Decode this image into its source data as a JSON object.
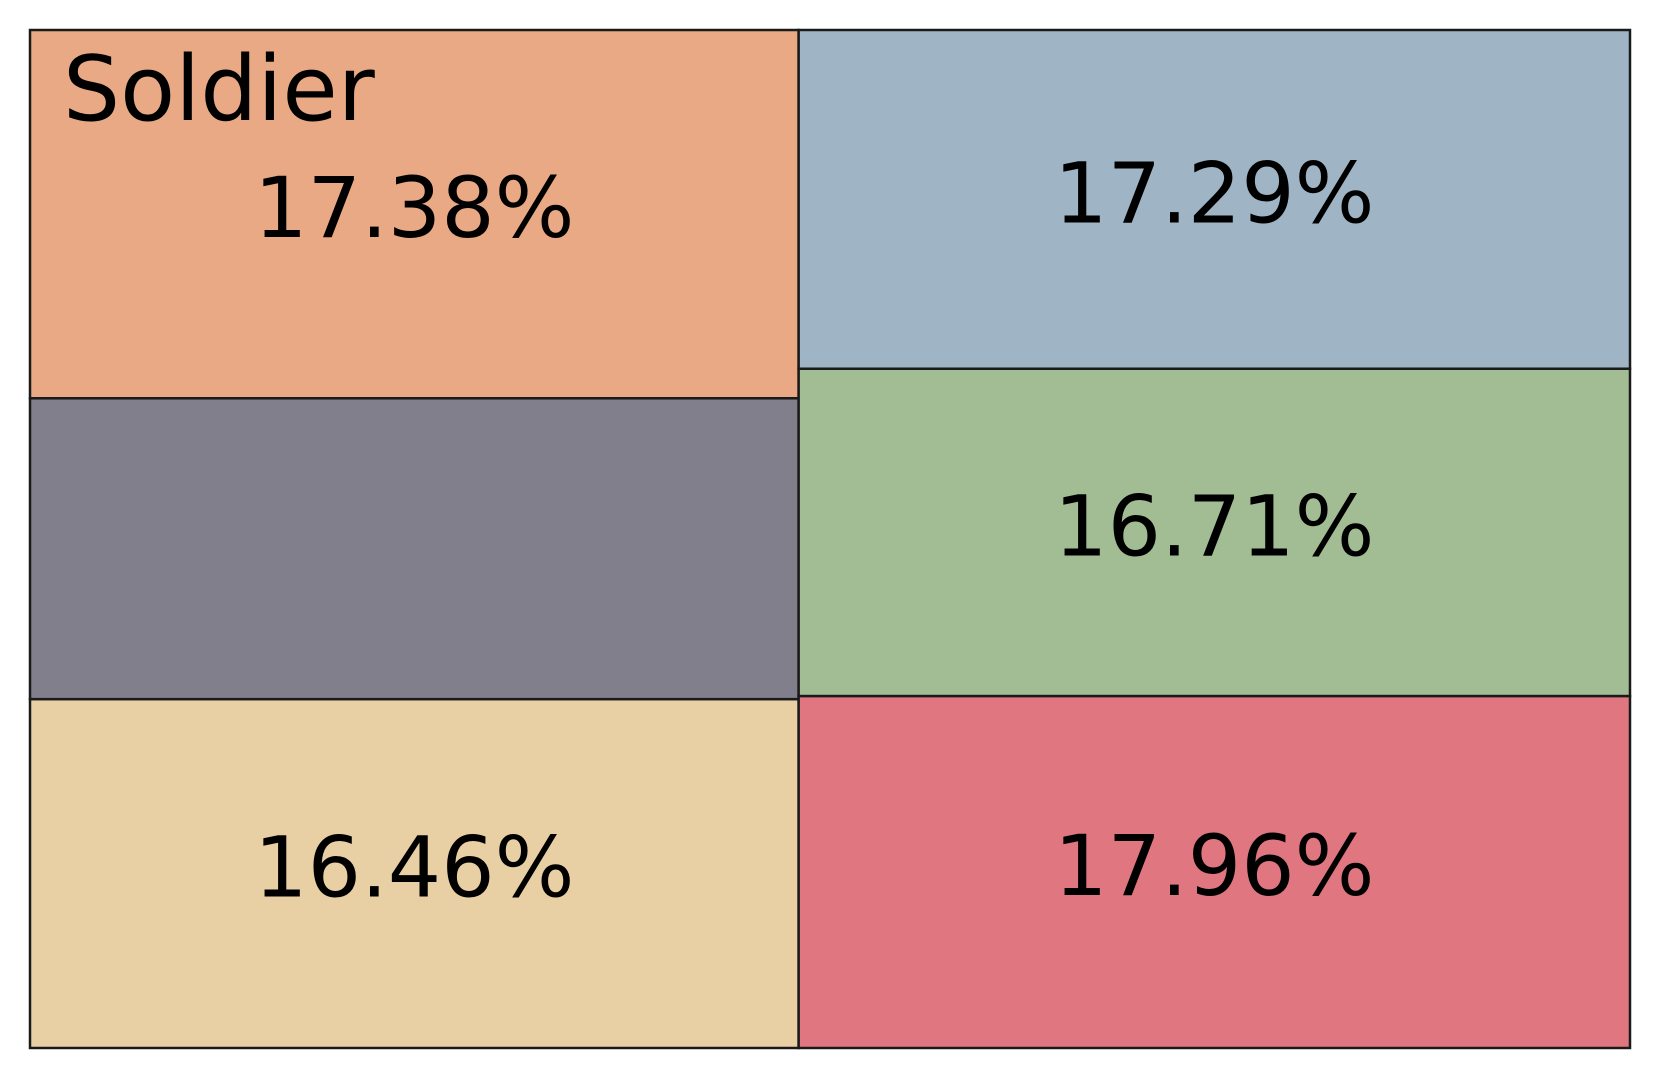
{
  "chart_data": {
    "type": "treemap",
    "categories": [
      "Soldier",
      null,
      null,
      null,
      null,
      null
    ],
    "values": [
      17.38,
      14.2,
      16.46,
      17.29,
      16.71,
      17.96
    ],
    "value_labels": [
      "17.38%",
      null,
      "16.46%",
      "17.29%",
      "16.71%",
      "17.96%"
    ],
    "colors": [
      "#e9a984",
      "#817f8b",
      "#e9d0a4",
      "#9fb4c4",
      "#a2bd93",
      "#e07780"
    ]
  }
}
